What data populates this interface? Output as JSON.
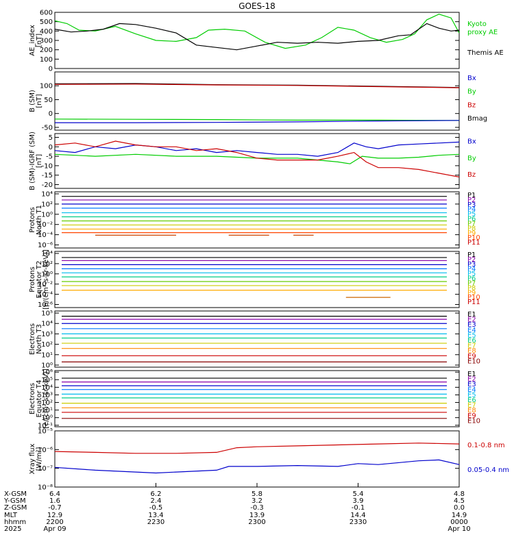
{
  "title": "GOES-18",
  "chart_data": [
    {
      "type": "line",
      "panel": "ae",
      "ylabel": [
        "AE_index",
        "[nT]"
      ],
      "ylim": [
        0,
        600
      ],
      "yscale": "linear",
      "yticks": [
        0,
        100,
        200,
        300,
        400,
        500,
        600
      ],
      "ytick_labels": [
        "0",
        "100",
        "200",
        "300",
        "400",
        "500",
        "600"
      ],
      "legend": [
        "Kyoto",
        "proxy AE",
        "Themis AE"
      ],
      "legend_colors": [
        "#00cc00",
        "#00cc00",
        "#000000"
      ],
      "series": [
        {
          "color": "#00cc00",
          "x": [
            0,
            0.03,
            0.06,
            0.1,
            0.15,
            0.2,
            0.25,
            0.3,
            0.35,
            0.38,
            0.42,
            0.47,
            0.52,
            0.57,
            0.62,
            0.66,
            0.7,
            0.74,
            0.78,
            0.82,
            0.86,
            0.89,
            0.92,
            0.95,
            0.98,
            1
          ],
          "values": [
            510,
            480,
            410,
            400,
            450,
            370,
            300,
            290,
            330,
            410,
            420,
            400,
            280,
            215,
            250,
            330,
            440,
            410,
            330,
            280,
            310,
            370,
            520,
            580,
            540,
            380
          ]
        },
        {
          "color": "#000000",
          "x": [
            0,
            0.04,
            0.08,
            0.12,
            0.16,
            0.2,
            0.25,
            0.3,
            0.35,
            0.4,
            0.45,
            0.5,
            0.55,
            0.6,
            0.65,
            0.7,
            0.75,
            0.8,
            0.85,
            0.88,
            0.92,
            0.95,
            0.98,
            1
          ],
          "values": [
            420,
            390,
            400,
            420,
            480,
            470,
            430,
            380,
            250,
            225,
            200,
            240,
            280,
            270,
            280,
            270,
            290,
            300,
            350,
            360,
            480,
            430,
            400,
            410
          ]
        }
      ]
    },
    {
      "type": "line",
      "panel": "b_sm",
      "ylabel": [
        "B (SM)",
        "[nT]"
      ],
      "ylim": [
        -60,
        150
      ],
      "yscale": "linear",
      "yticks": [
        -50,
        0,
        50,
        100
      ],
      "ytick_labels": [
        "-50",
        "0",
        "50",
        "100"
      ],
      "legend": [
        "Bx",
        "By",
        "Bz",
        "Bmag"
      ],
      "legend_colors": [
        "#0000cc",
        "#00cc00",
        "#cc0000",
        "#000000"
      ],
      "series": [
        {
          "color": "#000000",
          "x": [
            0,
            0.2,
            0.4,
            0.6,
            0.8,
            1
          ],
          "values": [
            107,
            108,
            104,
            102,
            98,
            94
          ]
        },
        {
          "color": "#cc0000",
          "x": [
            0,
            0.2,
            0.4,
            0.6,
            0.8,
            1
          ],
          "values": [
            105,
            106,
            103,
            101,
            97,
            93
          ]
        },
        {
          "color": "#00cc00",
          "x": [
            0,
            0.2,
            0.4,
            0.6,
            0.8,
            1
          ],
          "values": [
            -20,
            -21,
            -22,
            -24,
            -24,
            -25
          ]
        },
        {
          "color": "#0000cc",
          "x": [
            0,
            0.2,
            0.4,
            0.6,
            0.8,
            1
          ],
          "values": [
            -33,
            -33,
            -32,
            -30,
            -27,
            -25
          ]
        }
      ]
    },
    {
      "type": "line",
      "panel": "b_igrf",
      "ylabel": [
        "B (SM)-IGRF (SM)",
        "[nT]"
      ],
      "ylim": [
        -22,
        7
      ],
      "yscale": "linear",
      "yticks": [
        -20,
        -15,
        -10,
        -5,
        0,
        5
      ],
      "ytick_labels": [
        "-20",
        "-15",
        "-10",
        "-5",
        "0",
        "5"
      ],
      "legend": [
        "Bx",
        "By",
        "Bz"
      ],
      "legend_colors": [
        "#0000cc",
        "#00cc00",
        "#cc0000"
      ],
      "series": [
        {
          "color": "#0000cc",
          "x": [
            0,
            0.05,
            0.1,
            0.15,
            0.2,
            0.25,
            0.3,
            0.35,
            0.4,
            0.45,
            0.5,
            0.55,
            0.6,
            0.65,
            0.7,
            0.74,
            0.77,
            0.8,
            0.85,
            0.9,
            0.95,
            1
          ],
          "values": [
            -2,
            -3,
            0,
            -1,
            1,
            0,
            -2,
            -1,
            -3,
            -2,
            -3,
            -4,
            -4,
            -5,
            -3,
            2,
            0,
            -1,
            1,
            1.5,
            2,
            2.5
          ]
        },
        {
          "color": "#00cc00",
          "x": [
            0,
            0.1,
            0.2,
            0.3,
            0.4,
            0.5,
            0.6,
            0.65,
            0.7,
            0.73,
            0.76,
            0.8,
            0.85,
            0.9,
            0.95,
            1
          ],
          "values": [
            -4,
            -5,
            -4,
            -5,
            -5,
            -6,
            -6,
            -7,
            -8,
            -9,
            -5,
            -6,
            -6,
            -5.5,
            -4.5,
            -4
          ]
        },
        {
          "color": "#cc0000",
          "x": [
            0,
            0.05,
            0.1,
            0.15,
            0.2,
            0.25,
            0.3,
            0.35,
            0.4,
            0.45,
            0.5,
            0.55,
            0.6,
            0.65,
            0.7,
            0.74,
            0.77,
            0.8,
            0.85,
            0.9,
            0.95,
            1
          ],
          "values": [
            1,
            2,
            0,
            3,
            1,
            0,
            0,
            -2,
            -1,
            -3,
            -6,
            -7,
            -7,
            -7,
            -5,
            -3,
            -8,
            -11,
            -11,
            -12,
            -14,
            -16
          ]
        }
      ]
    },
    {
      "type": "line",
      "panel": "protons_t1",
      "ylabel": [
        "Protons",
        "North T1"
      ],
      "yscale": "log",
      "ylim_exp": [
        -6.6,
        4.4
      ],
      "yticks_exp": [
        4,
        2,
        0,
        -2,
        -4,
        -6
      ],
      "ytick_labels": [
        "10⁴",
        "10²",
        "10⁰",
        "10⁻²",
        "10⁻⁴",
        "10⁻⁶"
      ],
      "legend": [
        "P1",
        "P2",
        "P3",
        "P4",
        "P5",
        "P6",
        "P7",
        "P8",
        "P9",
        "P10",
        "P11"
      ],
      "legend_colors": [
        "#000000",
        "#8800aa",
        "#0000cc",
        "#0077ff",
        "#00bbee",
        "#00cc88",
        "#66cc00",
        "#cccc00",
        "#ffaa00",
        "#ff4400",
        "#cc0000"
      ],
      "levels_exp": [
        3.5,
        2.8,
        2.0,
        1.2,
        0.3,
        -0.5,
        -1.3,
        -2.1,
        -2.9,
        -3.6,
        null
      ],
      "fragments": [
        {
          "color": "#cc4400",
          "level_exp": -4.1,
          "x_ranges": [
            [
              0.1,
              0.3
            ],
            [
              0.43,
              0.53
            ],
            [
              0.59,
              0.64
            ]
          ]
        }
      ]
    },
    {
      "type": "line",
      "panel": "protons_t2",
      "ylabel": [
        "Protons",
        "Equator T2",
        "[p/(cm²-s-sr-keV)]"
      ],
      "yscale": "log",
      "ylim_exp": [
        -6.6,
        4.4
      ],
      "yticks_exp": [
        4,
        2,
        0,
        -2,
        -4,
        -6
      ],
      "ytick_labels": [
        "10⁴",
        "10²",
        "10⁰",
        "10⁻²",
        "10⁻⁴",
        "10⁻⁶"
      ],
      "legend": [
        "P1",
        "P2",
        "P3",
        "P4",
        "P5",
        "P6",
        "P7",
        "P8",
        "P9",
        "P10",
        "P11"
      ],
      "legend_colors": [
        "#000000",
        "#8800aa",
        "#0000cc",
        "#0077ff",
        "#00bbee",
        "#00cc88",
        "#66cc00",
        "#cccc00",
        "#ffaa00",
        "#ff4400",
        "#cc0000"
      ],
      "levels_exp": [
        3.2,
        2.6,
        1.8,
        1.0,
        0.2,
        -0.6,
        -1.5,
        -2.3,
        -3.2,
        null,
        null
      ],
      "fragments": [
        {
          "color": "#cc6600",
          "level_exp": -4.6,
          "x_ranges": [
            [
              0.72,
              0.83
            ]
          ]
        }
      ]
    },
    {
      "type": "line",
      "panel": "electrons_t3",
      "ylabel": [
        "Electrons",
        "North T3"
      ],
      "yscale": "log",
      "ylim_exp": [
        -0.2,
        5.2
      ],
      "yticks_exp": [
        5,
        4,
        3,
        2,
        1,
        0
      ],
      "ytick_labels": [
        "10⁵",
        "10⁴",
        "10³",
        "10²",
        "10¹",
        "10⁰"
      ],
      "legend": [
        "E1",
        "E2",
        "E3",
        "E4",
        "E5",
        "E6",
        "E7",
        "E8",
        "E9",
        "E10"
      ],
      "legend_colors": [
        "#000000",
        "#8800aa",
        "#0000cc",
        "#0077ff",
        "#00bbee",
        "#00cc88",
        "#cccc00",
        "#ff8800",
        "#cc0000",
        "#880000"
      ],
      "levels_exp": [
        4.7,
        4.4,
        4.0,
        3.5,
        3.0,
        2.6,
        2.1,
        1.6,
        0.9,
        0.3
      ]
    },
    {
      "type": "line",
      "panel": "electrons_t4",
      "ylabel": [
        "Electrons",
        "Equator T4",
        "[e/(cm²-s-sr-keV)]"
      ],
      "yscale": "log",
      "ylim_exp": [
        -1.2,
        6.2
      ],
      "yticks_exp": [
        6,
        5,
        4,
        3,
        2,
        1,
        0,
        -1
      ],
      "ytick_labels": [
        "10⁶",
        "10⁵",
        "10⁴",
        "10³",
        "10²",
        "10¹",
        "10⁰",
        "10⁻¹"
      ],
      "legend": [
        "E1",
        "E2",
        "E3",
        "E4",
        "E5",
        "E6",
        "E7",
        "E8",
        "E9",
        "E10"
      ],
      "legend_colors": [
        "#000000",
        "#8800aa",
        "#0000cc",
        "#0077ff",
        "#00bbee",
        "#00cc88",
        "#cccc00",
        "#ff8800",
        "#cc0000",
        "#880000"
      ],
      "levels_exp": [
        5.2,
        4.7,
        4.2,
        3.7,
        3.1,
        2.6,
        1.9,
        1.3,
        0.7,
        -0.1
      ]
    },
    {
      "type": "line",
      "panel": "xray",
      "ylabel": [
        "Xray flux",
        "[W/m²]"
      ],
      "yscale": "log",
      "ylim_exp": [
        -8,
        -5
      ],
      "yticks_exp": [
        -5,
        -6,
        -7,
        -8
      ],
      "ytick_labels": [
        "10⁻⁵",
        "10⁻⁶",
        "10⁻⁷",
        "10⁻⁸"
      ],
      "legend": [
        "0.1-0.8 nm",
        "0.05-0.4 nm"
      ],
      "legend_colors": [
        "#cc0000",
        "#0000cc"
      ],
      "series": [
        {
          "color": "#cc0000",
          "x": [
            0,
            0.1,
            0.2,
            0.3,
            0.4,
            0.45,
            0.5,
            0.6,
            0.7,
            0.8,
            0.9,
            1
          ],
          "exp": [
            -6.1,
            -6.15,
            -6.2,
            -6.2,
            -6.15,
            -5.9,
            -5.85,
            -5.8,
            -5.75,
            -5.7,
            -5.65,
            -5.7
          ]
        },
        {
          "color": "#0000cc",
          "x": [
            0,
            0.1,
            0.2,
            0.25,
            0.3,
            0.4,
            0.43,
            0.5,
            0.6,
            0.7,
            0.75,
            0.8,
            0.9,
            0.95,
            1
          ],
          "exp": [
            -6.95,
            -7.1,
            -7.2,
            -7.25,
            -7.2,
            -7.1,
            -6.9,
            -6.9,
            -6.85,
            -6.9,
            -6.75,
            -6.8,
            -6.6,
            -6.55,
            -6.8
          ]
        }
      ]
    }
  ],
  "x_axis": {
    "row_labels": [
      "X-GSM",
      "Y-GSM",
      "Z-GSM",
      "MLT",
      "hhmm",
      "2025"
    ],
    "ticks": [
      {
        "pos": 0.0,
        "values": [
          "6.4",
          "1.6",
          "-0.7",
          "12.9",
          "2200",
          "Apr 09"
        ]
      },
      {
        "pos": 0.25,
        "values": [
          "6.2",
          "2.4",
          "-0.5",
          "13.4",
          "2230",
          ""
        ]
      },
      {
        "pos": 0.5,
        "values": [
          "5.8",
          "3.2",
          "-0.3",
          "13.9",
          "2300",
          ""
        ]
      },
      {
        "pos": 0.75,
        "values": [
          "5.4",
          "3.9",
          "-0.1",
          "14.4",
          "2330",
          ""
        ]
      },
      {
        "pos": 1.0,
        "values": [
          "4.8",
          "4.5",
          "0.0",
          "14.9",
          "0000",
          "Apr 10"
        ]
      }
    ]
  }
}
